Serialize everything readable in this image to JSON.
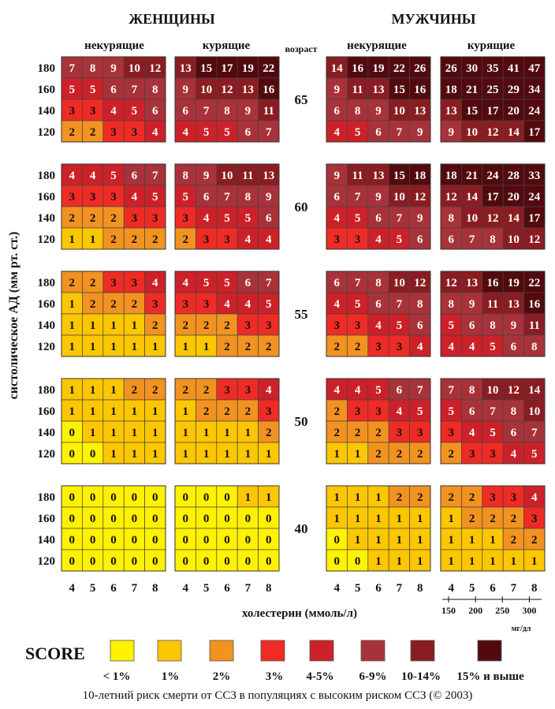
{
  "chart_data": {
    "type": "heatmap",
    "panel_titles": {
      "women": "ЖЕНЩИНЫ",
      "men": "МУЖЧИНЫ"
    },
    "group_labels": {
      "nonsmoking": "некурящие",
      "smoking": "курящие"
    },
    "age_header": "возраст",
    "ylabel": "систолическое АД  (мм рт. ст.)",
    "xlabel": "холестерин (ммоль/л)",
    "sbp_levels": [
      "180",
      "160",
      "140",
      "120"
    ],
    "chol_levels": [
      "4",
      "5",
      "6",
      "7",
      "8"
    ],
    "mgdl_ticks": [
      "150",
      "200",
      "250",
      "300"
    ],
    "mgdl_unit": "мг/дл",
    "legend_title": "SCORE",
    "legend": [
      {
        "label": "< 1%",
        "color": "#fff200"
      },
      {
        "label": "1%",
        "color": "#fcc600"
      },
      {
        "label": "2%",
        "color": "#f29220"
      },
      {
        "label": "3%",
        "color": "#ee2b24"
      },
      {
        "label": "4-5%",
        "color": "#cc2129"
      },
      {
        "label": "6-9%",
        "color": "#a8323a"
      },
      {
        "label": "10-14%",
        "color": "#8a1d22"
      },
      {
        "label": "15% и выше",
        "color": "#520a0e"
      }
    ],
    "footer": "10-летний риск смерти от ССЗ в популяциях с высоким риском ССЗ (© 2003)",
    "ages": [
      {
        "age": "65",
        "grids": {
          "women_nonsmoking": [
            [
              7,
              8,
              9,
              10,
              12
            ],
            [
              5,
              5,
              6,
              7,
              8
            ],
            [
              3,
              3,
              4,
              5,
              6
            ],
            [
              2,
              2,
              3,
              3,
              4
            ]
          ],
          "women_smoking": [
            [
              13,
              15,
              17,
              19,
              22
            ],
            [
              9,
              10,
              12,
              13,
              16
            ],
            [
              6,
              7,
              8,
              9,
              11
            ],
            [
              4,
              5,
              5,
              6,
              7
            ]
          ],
          "men_nonsmoking": [
            [
              14,
              16,
              19,
              22,
              26
            ],
            [
              9,
              11,
              13,
              15,
              16
            ],
            [
              6,
              8,
              9,
              10,
              13
            ],
            [
              4,
              5,
              6,
              7,
              9
            ]
          ],
          "men_smoking": [
            [
              26,
              30,
              35,
              41,
              47
            ],
            [
              18,
              21,
              25,
              29,
              34
            ],
            [
              13,
              15,
              17,
              20,
              24
            ],
            [
              9,
              10,
              12,
              14,
              17
            ]
          ]
        }
      },
      {
        "age": "60",
        "grids": {
          "women_nonsmoking": [
            [
              4,
              4,
              5,
              6,
              7
            ],
            [
              3,
              3,
              3,
              4,
              5
            ],
            [
              2,
              2,
              2,
              3,
              3
            ],
            [
              1,
              1,
              2,
              2,
              2
            ]
          ],
          "women_smoking": [
            [
              8,
              9,
              10,
              11,
              13
            ],
            [
              5,
              6,
              7,
              8,
              9
            ],
            [
              3,
              4,
              5,
              5,
              6
            ],
            [
              2,
              3,
              3,
              4,
              4
            ]
          ],
          "men_nonsmoking": [
            [
              9,
              11,
              13,
              15,
              18
            ],
            [
              6,
              7,
              9,
              10,
              12
            ],
            [
              4,
              5,
              6,
              7,
              9
            ],
            [
              3,
              3,
              4,
              5,
              6
            ]
          ],
          "men_smoking": [
            [
              18,
              21,
              24,
              28,
              33
            ],
            [
              12,
              14,
              17,
              20,
              24
            ],
            [
              8,
              10,
              12,
              14,
              17
            ],
            [
              6,
              7,
              8,
              10,
              12
            ]
          ]
        }
      },
      {
        "age": "55",
        "grids": {
          "women_nonsmoking": [
            [
              2,
              2,
              3,
              3,
              4
            ],
            [
              1,
              2,
              2,
              2,
              3
            ],
            [
              1,
              1,
              1,
              1,
              2
            ],
            [
              1,
              1,
              1,
              1,
              1
            ]
          ],
          "women_smoking": [
            [
              4,
              5,
              5,
              6,
              7
            ],
            [
              3,
              3,
              4,
              4,
              5
            ],
            [
              2,
              2,
              2,
              3,
              3
            ],
            [
              1,
              1,
              2,
              2,
              2
            ]
          ],
          "men_nonsmoking": [
            [
              6,
              7,
              8,
              10,
              12
            ],
            [
              4,
              5,
              6,
              7,
              8
            ],
            [
              3,
              3,
              4,
              5,
              6
            ],
            [
              2,
              2,
              3,
              3,
              4
            ]
          ],
          "men_smoking": [
            [
              12,
              13,
              16,
              19,
              22
            ],
            [
              8,
              9,
              11,
              13,
              16
            ],
            [
              5,
              6,
              8,
              9,
              11
            ],
            [
              4,
              4,
              5,
              6,
              8
            ]
          ]
        }
      },
      {
        "age": "50",
        "grids": {
          "women_nonsmoking": [
            [
              1,
              1,
              1,
              2,
              2
            ],
            [
              1,
              1,
              1,
              1,
              1
            ],
            [
              0,
              1,
              1,
              1,
              1
            ],
            [
              0,
              0,
              1,
              1,
              1
            ]
          ],
          "women_smoking": [
            [
              2,
              2,
              3,
              3,
              4
            ],
            [
              1,
              2,
              2,
              2,
              3
            ],
            [
              1,
              1,
              1,
              1,
              2
            ],
            [
              1,
              1,
              1,
              1,
              1
            ]
          ],
          "men_nonsmoking": [
            [
              4,
              4,
              5,
              6,
              7
            ],
            [
              2,
              3,
              3,
              4,
              5
            ],
            [
              2,
              2,
              2,
              3,
              3
            ],
            [
              1,
              1,
              2,
              2,
              2
            ]
          ],
          "men_smoking": [
            [
              7,
              8,
              10,
              12,
              14
            ],
            [
              5,
              6,
              7,
              8,
              10
            ],
            [
              3,
              4,
              5,
              6,
              7
            ],
            [
              2,
              3,
              3,
              4,
              5
            ]
          ]
        }
      },
      {
        "age": "40",
        "grids": {
          "women_nonsmoking": [
            [
              0,
              0,
              0,
              0,
              0
            ],
            [
              0,
              0,
              0,
              0,
              0
            ],
            [
              0,
              0,
              0,
              0,
              0
            ],
            [
              0,
              0,
              0,
              0,
              0
            ]
          ],
          "women_smoking": [
            [
              0,
              0,
              0,
              1,
              1
            ],
            [
              0,
              0,
              0,
              0,
              0
            ],
            [
              0,
              0,
              0,
              0,
              0
            ],
            [
              0,
              0,
              0,
              0,
              0
            ]
          ],
          "men_nonsmoking": [
            [
              1,
              1,
              1,
              2,
              2
            ],
            [
              1,
              1,
              1,
              1,
              1
            ],
            [
              0,
              1,
              1,
              1,
              1
            ],
            [
              0,
              0,
              1,
              1,
              1
            ]
          ],
          "men_smoking": [
            [
              2,
              2,
              3,
              3,
              4
            ],
            [
              1,
              2,
              2,
              2,
              3
            ],
            [
              1,
              1,
              1,
              2,
              2
            ],
            [
              1,
              1,
              1,
              1,
              1
            ]
          ]
        }
      }
    ]
  }
}
